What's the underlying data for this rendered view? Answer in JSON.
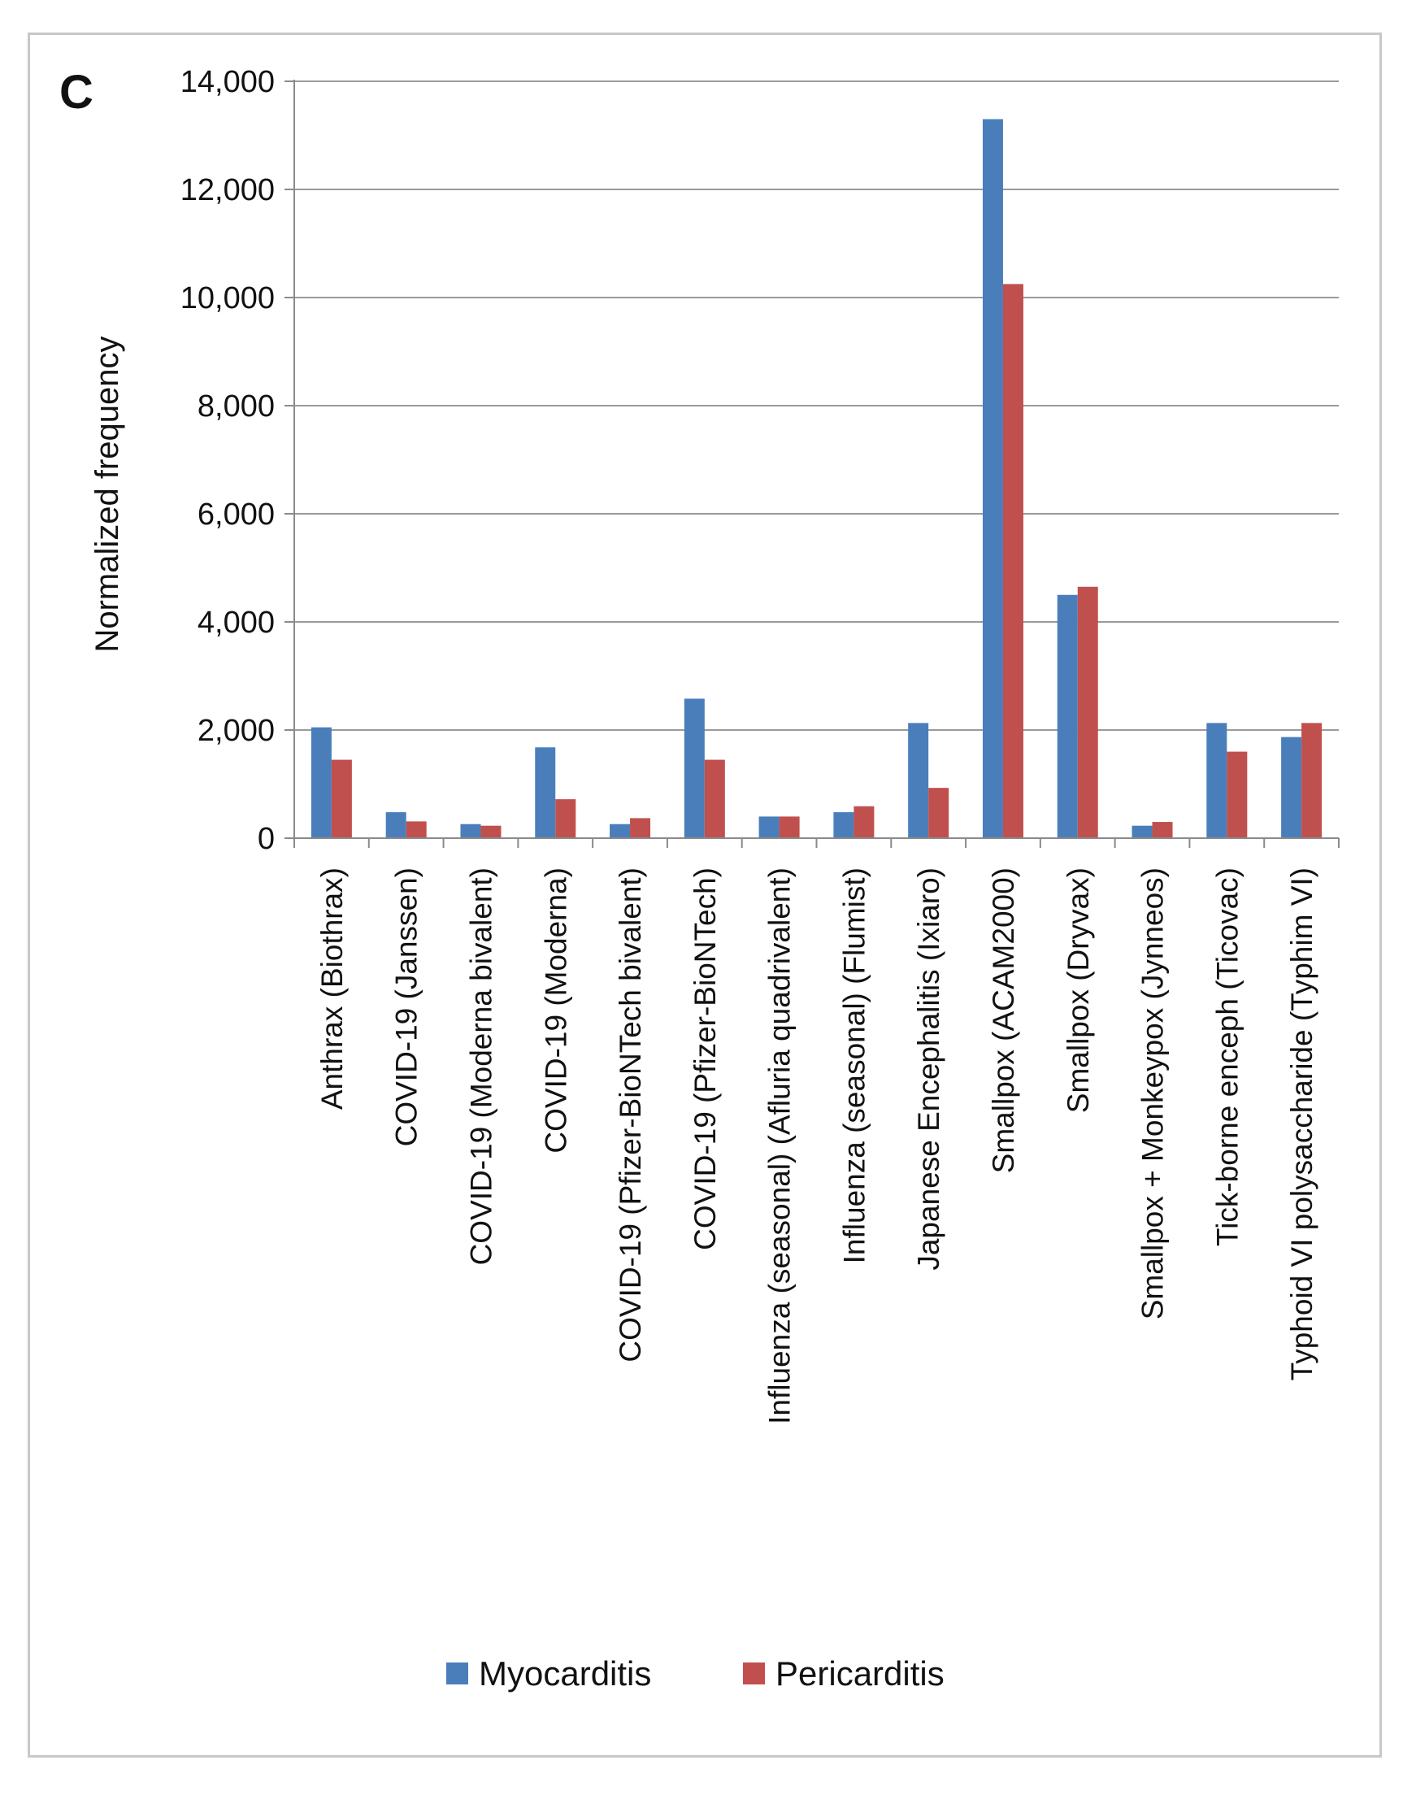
{
  "chart_data": {
    "type": "bar",
    "panel_label": "C",
    "title": "",
    "xlabel": "",
    "ylabel": "Normalized frequency",
    "ylim": [
      0,
      14000
    ],
    "yticks": [
      0,
      2000,
      4000,
      6000,
      8000,
      10000,
      12000,
      14000
    ],
    "ytick_labels": [
      "0",
      "2,000",
      "4,000",
      "6,000",
      "8,000",
      "10,000",
      "12,000",
      "14,000"
    ],
    "grid": true,
    "legend_position": "bottom",
    "categories": [
      "Anthrax (Biothrax)",
      "COVID-19 (Janssen)",
      "COVID-19 (Moderna bivalent)",
      "COVID-19 (Moderna)",
      "COVID-19 (Pfizer-BioNTech bivalent)",
      "COVID-19 (Pfizer-BioNTech)",
      "Influenza (seasonal) (Afluria quadrivalent)",
      "Influenza (seasonal) (Flumist)",
      "Japanese Encephalitis (Ixiaro)",
      "Smallpox (ACAM2000)",
      "Smallpox (Dryvax)",
      "Smallpox + Monkeypox (Jynneos)",
      "Tick-borne enceph (Ticovac)",
      "Typhoid VI polysaccharide (Typhim VI)"
    ],
    "series": [
      {
        "name": "Myocarditis",
        "color": "#4a7ebb",
        "values": [
          2050,
          480,
          260,
          1680,
          260,
          2580,
          400,
          480,
          2130,
          13300,
          4500,
          230,
          2130,
          1870
        ]
      },
      {
        "name": "Pericarditis",
        "color": "#c0504d",
        "values": [
          1450,
          310,
          230,
          720,
          370,
          1450,
          400,
          590,
          930,
          10250,
          4650,
          300,
          1600,
          2130
        ]
      }
    ]
  }
}
